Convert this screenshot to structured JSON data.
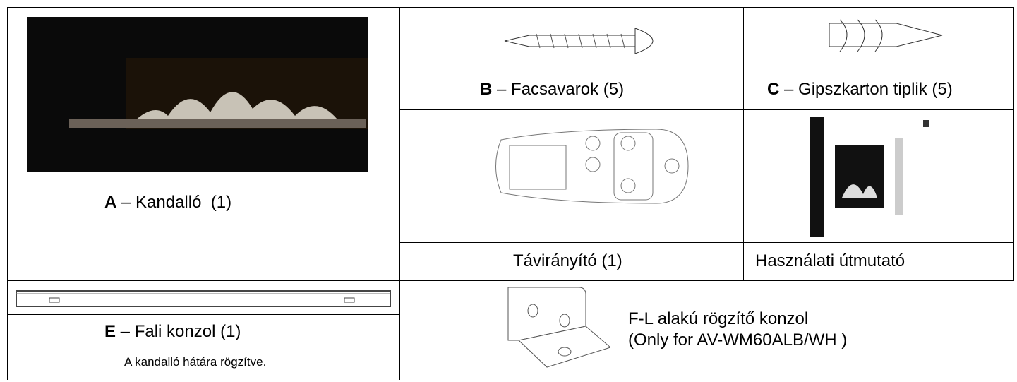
{
  "parts": {
    "a": {
      "letter": "A",
      "label": " – Kandalló  (1)"
    },
    "b": {
      "letter": "B",
      "label": " – Facsavarok (5)"
    },
    "c": {
      "letter": "C",
      "label": " – Gipszkarton tiplik (5)"
    },
    "remote": {
      "label": "Távirányító (1)"
    },
    "manual": {
      "label": "Használati útmutató"
    },
    "e": {
      "letter": "E",
      "label": " – Fali konzol (1)",
      "note": "A kandalló hátára rögzítve."
    },
    "f": {
      "line1": "F-L alakú rögzítő konzol",
      "line2": "(Only for AV-WM60ALB/WH )"
    }
  }
}
